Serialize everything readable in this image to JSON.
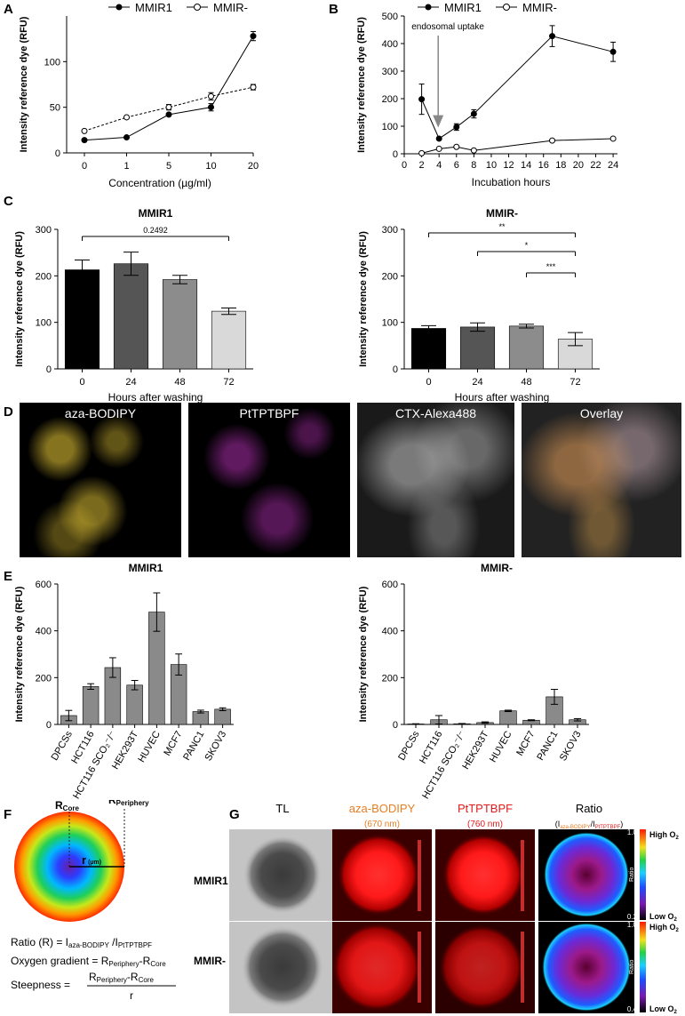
{
  "panels": {
    "A": "A",
    "B": "B",
    "C": "C",
    "D": "D",
    "E": "E",
    "F": "F",
    "G": "G"
  },
  "legend": {
    "filled": "MMIR1",
    "open": "MMIR-"
  },
  "colors": {
    "bar0": "#000000",
    "bar1": "#555555",
    "bar2": "#8c8c8c",
    "bar3": "#d9d9d9",
    "barE": "#8a8a8a",
    "yellow": "#f2d23a",
    "magenta": "#d63ad6",
    "grey": "#cfcfcf",
    "orange": "#e67e22",
    "red": "#e31b1b"
  },
  "chart_data": [
    {
      "id": "A",
      "type": "line",
      "xlabel": "Concentration (µg/ml)",
      "ylabel": "Intensity reference dye (RFU)",
      "categories": [
        "0",
        "1",
        "5",
        "10",
        "20"
      ],
      "ylim": [
        0,
        150
      ],
      "yticks": [
        0,
        50,
        100
      ],
      "series": [
        {
          "name": "MMIR1",
          "values": [
            14,
            17,
            42,
            50,
            128
          ],
          "err": [
            0,
            0,
            0,
            4,
            5
          ]
        },
        {
          "name": "MMIR-",
          "values": [
            24,
            39,
            50,
            62,
            72
          ],
          "err": [
            0,
            0,
            3,
            4,
            3
          ]
        }
      ]
    },
    {
      "id": "B",
      "type": "line",
      "xlabel": "Incubation hours",
      "ylabel": "Intensity reference dye (RFU)",
      "xticks": [
        0,
        2,
        4,
        6,
        8,
        10,
        12,
        14,
        16,
        18,
        20,
        22,
        24
      ],
      "xlim": [
        0,
        24.5
      ],
      "ylim": [
        0,
        500
      ],
      "yticks": [
        0,
        100,
        200,
        300,
        400,
        500
      ],
      "annotation": "endosomal uptake",
      "series": [
        {
          "name": "MMIR1",
          "x": [
            2,
            4,
            6,
            8,
            17,
            24
          ],
          "values": [
            198,
            55,
            97,
            145,
            427,
            370
          ],
          "err": [
            55,
            0,
            12,
            15,
            38,
            35
          ]
        },
        {
          "name": "MMIR-",
          "x": [
            2,
            4,
            6,
            8,
            17,
            24
          ],
          "values": [
            2,
            18,
            25,
            12,
            48,
            55
          ],
          "err": [
            0,
            0,
            3,
            2,
            4,
            3
          ]
        }
      ]
    },
    {
      "id": "C1",
      "type": "bar",
      "title": "MMIR1",
      "xlabel": "Hours after washing",
      "ylabel": "Intensity reference dye (RFU)",
      "categories": [
        "0",
        "24",
        "48",
        "72"
      ],
      "values": [
        213,
        226,
        192,
        124
      ],
      "err": [
        21,
        25,
        9,
        7
      ],
      "ylim": [
        0,
        300
      ],
      "yticks": [
        0,
        100,
        200,
        300
      ],
      "significance": [
        {
          "from": 0,
          "to": 3,
          "label": "0.2492"
        }
      ]
    },
    {
      "id": "C2",
      "type": "bar",
      "title": "MMIR-",
      "xlabel": "Hours after washing",
      "ylabel": "Intensity reference dye (RFU)",
      "categories": [
        "0",
        "24",
        "48",
        "72"
      ],
      "values": [
        87,
        90,
        92,
        64
      ],
      "err": [
        6,
        9,
        4,
        14
      ],
      "ylim": [
        0,
        300
      ],
      "yticks": [
        0,
        100,
        200,
        300
      ],
      "significance": [
        {
          "from": 0,
          "to": 3,
          "label": "**"
        },
        {
          "from": 1,
          "to": 3,
          "label": "*"
        },
        {
          "from": 2,
          "to": 3,
          "label": "***"
        }
      ]
    },
    {
      "id": "E1",
      "type": "bar",
      "title": "MMIR1",
      "ylabel": "Intensity reference dye (RFU)",
      "categories": [
        "DPCSs",
        "HCT116",
        "HCT116 SCO₂⁻/⁻",
        "HEK293T",
        "HUVEC",
        "MCF7",
        "PANC1",
        "SKOV3"
      ],
      "values": [
        38,
        162,
        243,
        168,
        480,
        256,
        55,
        65
      ],
      "err": [
        22,
        12,
        42,
        20,
        82,
        45,
        6,
        6
      ],
      "ylim": [
        0,
        600
      ],
      "yticks": [
        0,
        200,
        400,
        600
      ]
    },
    {
      "id": "E2",
      "type": "bar",
      "title": "MMIR-",
      "ylabel": "Intensity reference dye (RFU)",
      "categories": [
        "DPCSs",
        "HCT116",
        "HCT116 SCO₂⁻/⁻",
        "HEK293T",
        "HUVEC",
        "MCF7",
        "PANC1",
        "SKOV3"
      ],
      "values": [
        2,
        20,
        3,
        8,
        58,
        18,
        118,
        20
      ],
      "err": [
        1,
        18,
        1,
        3,
        3,
        2,
        32,
        5
      ],
      "ylim": [
        0,
        600
      ],
      "yticks": [
        0,
        200,
        400,
        600
      ]
    }
  ],
  "microscopy_D": [
    "aza-BODIPY",
    "PtTPTBPF",
    "CTX-Alexa488",
    "Overlay"
  ],
  "panelF": {
    "r_core": "R",
    "r_core_sub": "Core",
    "r_periphery": "R",
    "r_periphery_sub": "Periphery",
    "radius": "r",
    "radius_unit": "(µm)",
    "eq1": "Ratio (R) = I",
    "eq1_sub1": "aza-BODIPY",
    "eq1_mid": " /I",
    "eq1_sub2": "PtTPTBPF",
    "eq2": "Oxygen gradient = R",
    "eq2_sub1": "Periphery",
    "eq2_mid": "-R",
    "eq2_sub2": "Core",
    "eq3_left": "Steepness = ",
    "eq3_num": "R",
    "eq3_num_sub1": "Periphery",
    "eq3_num_mid": "-R",
    "eq3_num_sub2": "Core",
    "eq3_den": "r"
  },
  "panelG": {
    "cols": [
      "TL",
      "aza-BODIPY",
      "PtTPTBPF",
      "Ratio"
    ],
    "col_sub": [
      "",
      "(670 nm)",
      "(760 nm)",
      ""
    ],
    "ratio_sub_I1": "(I",
    "ratio_sub_s1": "aza-BODIPY",
    "ratio_sub_I2": "/I",
    "ratio_sub_s2": "PtTPTBPF",
    "ratio_sub_close": ")",
    "rows": [
      "MMIR1",
      "MMIR-"
    ],
    "colorbar": {
      "label": "Ratio",
      "high": "High O",
      "low": "Low O",
      "sub": "2",
      "max_top": "1.0",
      "min_top": "0.2",
      "max_bot": "1.0",
      "min_bot": "0.4"
    }
  }
}
